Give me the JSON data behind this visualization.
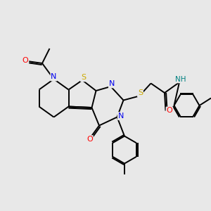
{
  "bg_color": "#e8e8e8",
  "atom_colors": {
    "C": "#000000",
    "N": "#0000ee",
    "O": "#ff0000",
    "S": "#ccaa00",
    "H": "#008080"
  },
  "bond_color": "#000000",
  "bond_width": 1.4,
  "figsize": [
    3.0,
    3.0
  ],
  "dpi": 100
}
